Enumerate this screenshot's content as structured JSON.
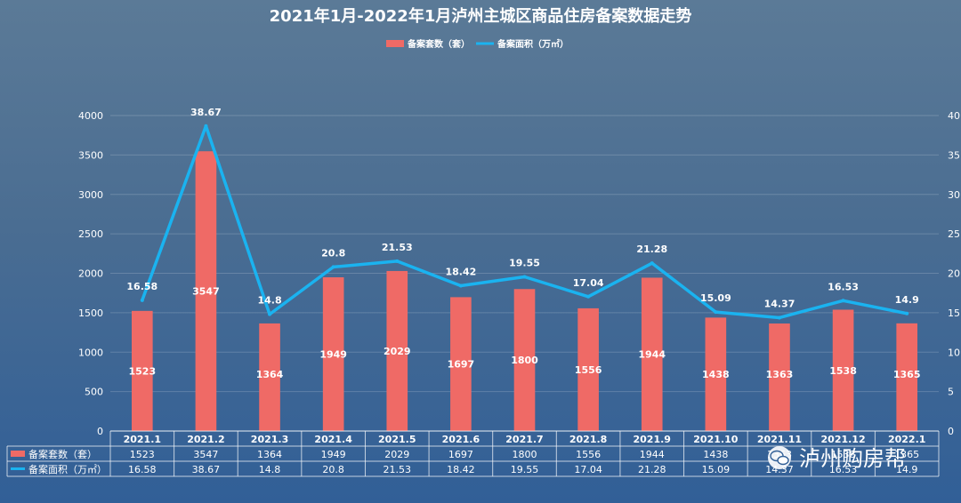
{
  "chart_data": {
    "type": "bar",
    "title": "2021年1月-2022年1月泸州主城区商品住房备案数据走势",
    "categories": [
      "2021.1",
      "2021.2",
      "2021.3",
      "2021.4",
      "2021.5",
      "2021.6",
      "2021.7",
      "2021.8",
      "2021.9",
      "2021.10",
      "2021.11",
      "2021.12",
      "2022.1"
    ],
    "series": [
      {
        "name": "备案套数（套）",
        "type": "bar",
        "axis": "left",
        "color": "#ef6a66",
        "values": [
          1523,
          3547,
          1364,
          1949,
          2029,
          1697,
          1800,
          1556,
          1944,
          1438,
          1363,
          1538,
          1365
        ]
      },
      {
        "name": "备案面积（万㎡）",
        "type": "line",
        "axis": "right",
        "color": "#1ab3f0",
        "values": [
          16.58,
          38.67,
          14.8,
          20.8,
          21.53,
          18.42,
          19.55,
          17.04,
          21.28,
          15.09,
          14.37,
          16.53,
          14.9
        ]
      }
    ],
    "ylim_left": [
      0,
      4000
    ],
    "ylim_right": [
      0,
      40
    ],
    "yticks_left": [
      0,
      500,
      1000,
      1500,
      2000,
      2500,
      3000,
      3500,
      4000
    ],
    "yticks_right": [
      0,
      5,
      10,
      15,
      20,
      25,
      30,
      35,
      40
    ],
    "legend_position": "top-center",
    "grid": true,
    "data_table": true
  },
  "watermark": {
    "text": "泸州购房帮",
    "icon": "wechat-icon"
  }
}
